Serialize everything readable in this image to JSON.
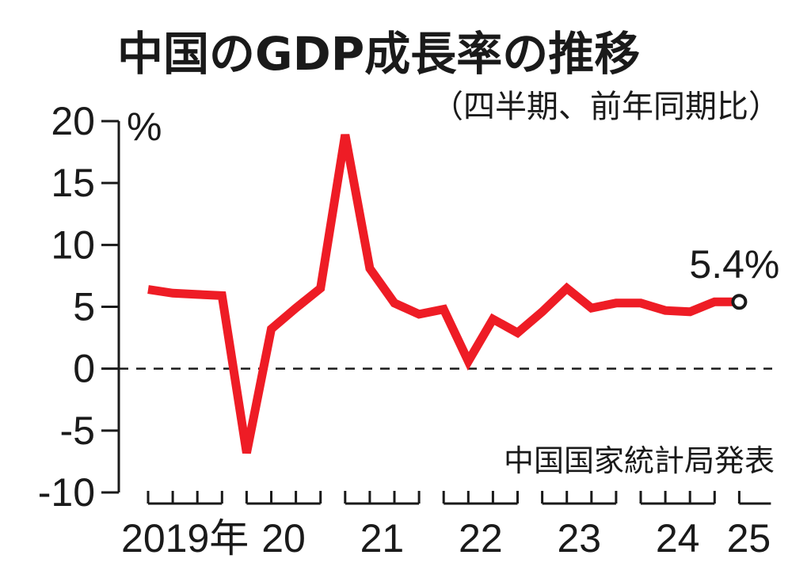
{
  "chart_data": {
    "type": "line",
    "title": "中国のGDP成長率の推移",
    "subtitle": "（四半期、前年同期比）",
    "ylabel": "%",
    "source": "中国国家統計局発表",
    "ylim": [
      -10,
      20
    ],
    "y_ticks": [
      "20",
      "15",
      "10",
      "5",
      "0",
      "-5",
      "-10"
    ],
    "x_year_labels": [
      "2019年",
      "20",
      "21",
      "22",
      "23",
      "24",
      "25"
    ],
    "x": [
      "2019Q1",
      "2019Q2",
      "2019Q3",
      "2019Q4",
      "2020Q1",
      "2020Q2",
      "2020Q3",
      "2020Q4",
      "2021Q1",
      "2021Q2",
      "2021Q3",
      "2021Q4",
      "2022Q1",
      "2022Q2",
      "2022Q3",
      "2022Q4",
      "2023Q1",
      "2023Q2",
      "2023Q3",
      "2023Q4",
      "2024Q1",
      "2024Q2",
      "2024Q3",
      "2024Q4",
      "2025Q1"
    ],
    "series": [
      {
        "values": [
          6.4,
          6.1,
          6.0,
          5.9,
          -6.8,
          3.2,
          4.9,
          6.5,
          18.9,
          8.1,
          5.3,
          4.4,
          4.8,
          0.6,
          4.0,
          2.9,
          4.6,
          6.5,
          4.9,
          5.3,
          5.3,
          4.7,
          4.6,
          5.4,
          5.4
        ],
        "color": "#ee1c25"
      }
    ],
    "zero_line": "dashed",
    "last_value_label": "5.4%",
    "grid": false
  }
}
